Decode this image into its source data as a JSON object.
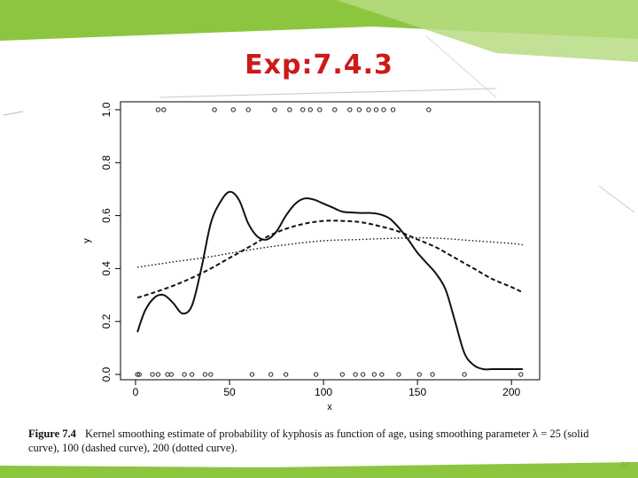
{
  "slide": {
    "title": "Exp:7.4.3",
    "page_number": "52",
    "theme_color": "#8cc63f",
    "title_color": "#cc1a1a"
  },
  "caption": {
    "lead": "Figure  7.4",
    "text": "Kernel smoothing estimate of probability of kyphosis as function of age, using smoothing parameter λ = 25 (solid curve), 100 (dashed curve), 200 (dotted curve)."
  },
  "chart_data": {
    "type": "line",
    "xlabel": "x",
    "ylabel": "y",
    "xlim": [
      -8,
      215
    ],
    "ylim": [
      -0.02,
      1.03
    ],
    "x_ticks": [
      0,
      50,
      100,
      150,
      200
    ],
    "x_tick_labels": [
      "0",
      "50",
      "100",
      "150",
      "200"
    ],
    "y_ticks": [
      0.0,
      0.2,
      0.4,
      0.6,
      0.8,
      1.0
    ],
    "y_tick_labels": [
      "0.0",
      "0.2",
      "0.4",
      "0.6",
      "0.8",
      "1.0"
    ],
    "series": [
      {
        "style": "solid",
        "x": [
          1,
          5,
          10,
          15,
          20,
          25,
          30,
          35,
          40,
          45,
          50,
          55,
          60,
          65,
          70,
          75,
          80,
          85,
          90,
          95,
          100,
          105,
          110,
          115,
          120,
          125,
          130,
          135,
          140,
          145,
          150,
          155,
          160,
          165,
          170,
          175,
          180,
          185,
          190,
          195,
          200,
          206
        ],
        "y": [
          0.16,
          0.24,
          0.29,
          0.3,
          0.27,
          0.23,
          0.26,
          0.4,
          0.57,
          0.65,
          0.69,
          0.66,
          0.57,
          0.52,
          0.51,
          0.54,
          0.6,
          0.645,
          0.665,
          0.66,
          0.645,
          0.63,
          0.615,
          0.612,
          0.61,
          0.61,
          0.605,
          0.59,
          0.555,
          0.51,
          0.46,
          0.42,
          0.38,
          0.32,
          0.2,
          0.08,
          0.035,
          0.02,
          0.02,
          0.02,
          0.02,
          0.02
        ]
      },
      {
        "style": "dashed",
        "x": [
          1,
          10,
          20,
          30,
          40,
          50,
          60,
          70,
          80,
          90,
          100,
          110,
          120,
          130,
          140,
          150,
          160,
          170,
          180,
          190,
          200,
          206
        ],
        "y": [
          0.29,
          0.31,
          0.335,
          0.365,
          0.4,
          0.44,
          0.48,
          0.52,
          0.55,
          0.57,
          0.58,
          0.58,
          0.575,
          0.56,
          0.54,
          0.51,
          0.48,
          0.44,
          0.4,
          0.36,
          0.33,
          0.31
        ]
      },
      {
        "style": "dotted",
        "x": [
          1,
          20,
          40,
          60,
          80,
          100,
          120,
          140,
          160,
          180,
          200,
          206
        ],
        "y": [
          0.405,
          0.425,
          0.445,
          0.47,
          0.49,
          0.505,
          0.51,
          0.515,
          0.515,
          0.505,
          0.495,
          0.49
        ]
      }
    ],
    "observations": {
      "y1_x": [
        12,
        15,
        42,
        52,
        60,
        74,
        82,
        89,
        93,
        98,
        106,
        114,
        119,
        124,
        128,
        132,
        137,
        156
      ],
      "y0_x": [
        1,
        2,
        9,
        12,
        17,
        19,
        26,
        30,
        37,
        40,
        62,
        72,
        80,
        96,
        110,
        117,
        121,
        127,
        131,
        140,
        151,
        158,
        175,
        205
      ]
    }
  }
}
